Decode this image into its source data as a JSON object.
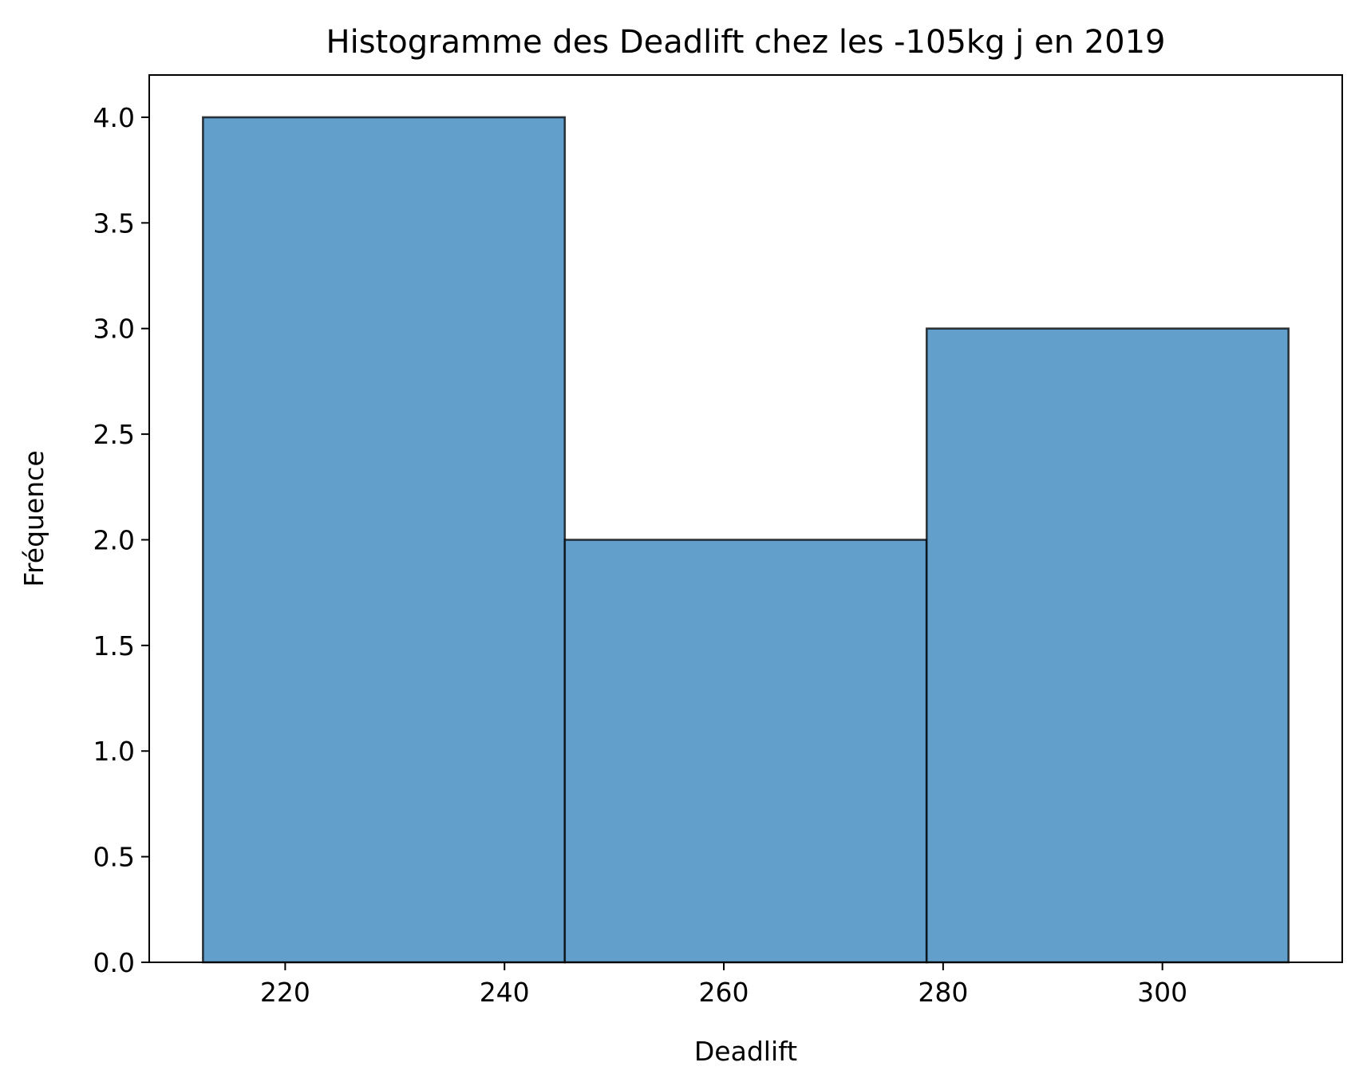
{
  "chart_data": {
    "type": "bar",
    "title": "Histogramme des Deadlift chez les -105kg j en 2019",
    "xlabel": "Deadlift",
    "ylabel": "Fréquence",
    "bins": [
      {
        "start": 212.5,
        "end": 245.5,
        "count": 4
      },
      {
        "start": 245.5,
        "end": 278.5,
        "count": 2
      },
      {
        "start": 278.5,
        "end": 311.5,
        "count": 3
      }
    ],
    "xlim": [
      207.6,
      316.4
    ],
    "ylim": [
      0,
      4.2
    ],
    "x_ticks": [
      220,
      240,
      260,
      280,
      300
    ],
    "x_tick_labels": [
      "220",
      "240",
      "260",
      "280",
      "300"
    ],
    "y_ticks": [
      0,
      0.5,
      1,
      1.5,
      2,
      2.5,
      3,
      3.5,
      4
    ],
    "y_tick_labels": [
      "0.0",
      "0.5",
      "1.0",
      "1.5",
      "2.0",
      "2.5",
      "3.0",
      "3.5",
      "4.0"
    ],
    "grid": false,
    "bar_color": "#629fcb",
    "edge_color": "#000000"
  }
}
